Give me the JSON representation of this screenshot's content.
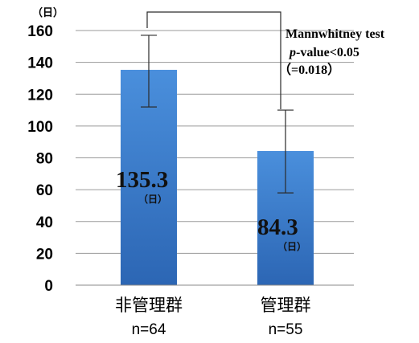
{
  "chart_data": {
    "type": "bar",
    "y_unit": "（日）",
    "categories": [
      "非管理群",
      "管理群"
    ],
    "category_counts": [
      "n=64",
      "n=55"
    ],
    "values": [
      135.3,
      84.3
    ],
    "value_labels": [
      "135.3",
      "84.3"
    ],
    "value_label_unit": "（日）",
    "error_low": [
      112,
      58
    ],
    "error_high": [
      157,
      110
    ],
    "ylim": [
      0,
      160
    ],
    "yticks": [
      0,
      20,
      40,
      60,
      80,
      100,
      120,
      140,
      160
    ],
    "grid": true,
    "bar_color": "#3d7fce",
    "annotation": {
      "line1": "Mannwhitney test",
      "line2_italic": "p",
      "line2_rest": "-value<0.05",
      "line3": "（=0.018）"
    }
  }
}
